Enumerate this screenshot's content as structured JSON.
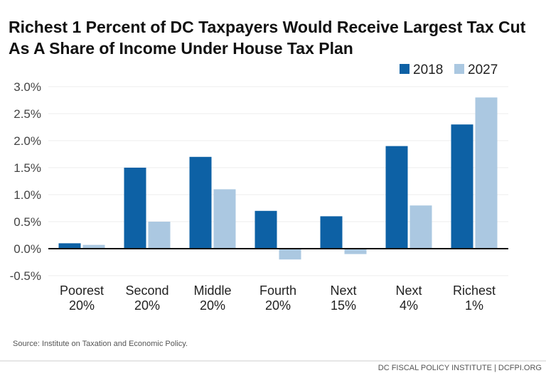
{
  "chart_data": {
    "type": "bar",
    "title": "Richest 1 Percent of DC Taxpayers Would Receive Largest Tax Cut As A Share of Income Under House Tax Plan",
    "title_lines": [
      "Richest 1 Percent of DC Taxpayers Would Receive Largest Tax Cut",
      "As A Share of Income Under House Tax Plan"
    ],
    "categories": [
      [
        "Poorest",
        "20%"
      ],
      [
        "Second",
        "20%"
      ],
      [
        "Middle",
        "20%"
      ],
      [
        "Fourth",
        "20%"
      ],
      [
        "Next",
        "15%"
      ],
      [
        "Next",
        "4%"
      ],
      [
        "Richest",
        "1%"
      ]
    ],
    "series": [
      {
        "name": "2018",
        "color": "#0d61a5",
        "values": [
          0.1,
          1.5,
          1.7,
          0.7,
          0.6,
          1.9,
          2.3
        ]
      },
      {
        "name": "2027",
        "color": "#abc8e1",
        "values": [
          0.07,
          0.5,
          1.1,
          -0.2,
          -0.1,
          0.8,
          2.8
        ]
      }
    ],
    "yticks": [
      "3.0%",
      "2.5%",
      "2.0%",
      "1.5%",
      "1.0%",
      "0.5%",
      "0.0%",
      "-0.5%"
    ],
    "ytick_values": [
      3.0,
      2.5,
      2.0,
      1.5,
      1.0,
      0.5,
      0.0,
      -0.5
    ],
    "ylim": [
      -0.5,
      3.0
    ],
    "grid": true,
    "legend_placement": "top-right",
    "source": "Source: Institute on Taxation and Economic Policy.",
    "footer": "DC FISCAL POLICY INSTITUTE | DCFPI.ORG"
  }
}
